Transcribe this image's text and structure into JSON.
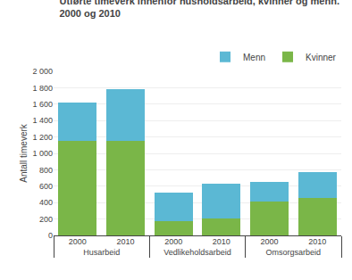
{
  "chart_data": {
    "type": "bar",
    "stacked": true,
    "title": "Utførte timeverk innenfor husholdsarbeid, kvinner og menn.",
    "subtitle": "2000 og 2010",
    "ylabel": "Antall timeverk",
    "groups": [
      "Husarbeid",
      "Vedlikeholdsarbeid",
      "Omsorgsarbeid"
    ],
    "categories": [
      "2000",
      "2010",
      "2000",
      "2010",
      "2000",
      "2010"
    ],
    "series": [
      {
        "name": "Kvinner",
        "color": "#7ab648",
        "values": [
          1150,
          1150,
          175,
          210,
          415,
          455
        ]
      },
      {
        "name": "Menn",
        "color": "#5bb8d4",
        "values": [
          475,
          630,
          350,
          425,
          240,
          320
        ]
      }
    ],
    "ylim": [
      0,
      2000
    ],
    "yticks": [
      0,
      200,
      400,
      600,
      800,
      {
        "value": 1000,
        "label": "1 000"
      },
      {
        "value": 1200,
        "label": "1 200"
      },
      {
        "value": 1400,
        "label": "1 400"
      },
      {
        "value": 1600,
        "label": "1 600"
      },
      {
        "value": 1800,
        "label": "1 800"
      },
      {
        "value": 2000,
        "label": "2 000"
      }
    ],
    "grid": true,
    "legend": "upper right"
  }
}
